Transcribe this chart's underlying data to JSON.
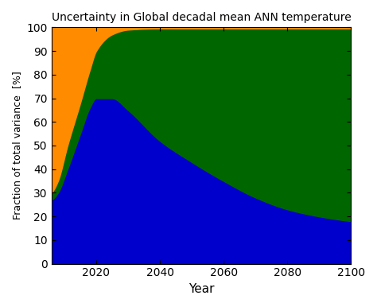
{
  "title": "Uncertainty in Global decadal mean ANN temperature",
  "xlabel": "Year",
  "ylabel": "Fraction of total variance  [%]",
  "xlim": [
    2006,
    2100
  ],
  "ylim": [
    0,
    100
  ],
  "xticks": [
    2020,
    2040,
    2060,
    2080,
    2100
  ],
  "yticks": [
    0,
    10,
    20,
    30,
    40,
    50,
    60,
    70,
    80,
    90,
    100
  ],
  "color_internal": "#0000cc",
  "color_model": "#006600",
  "color_scenario": "#ff8c00",
  "bg_color": "#ffffff",
  "years_ctrl": [
    2006,
    2008,
    2011,
    2015,
    2018,
    2020,
    2025,
    2030,
    2040,
    2050,
    2060,
    2070,
    2080,
    2090,
    2100
  ],
  "internal_ctrl": [
    27,
    30,
    40,
    55,
    66,
    70,
    70,
    65,
    52,
    43,
    35,
    28,
    23,
    20,
    18
  ],
  "top_green_ctrl": [
    30,
    35,
    50,
    68,
    82,
    90,
    97,
    99,
    99.5,
    99.5,
    99.5,
    99.5,
    99.5,
    99.5,
    99.5
  ]
}
